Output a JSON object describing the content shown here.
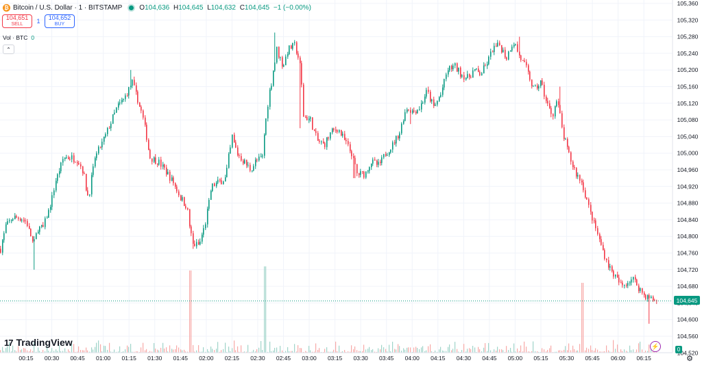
{
  "header": {
    "coin_symbol": "₿",
    "symbol_text": "Bitcoin / U.S. Dollar · 1 · BITSTAMP",
    "open_label": "O",
    "open": "104,636",
    "high_label": "H",
    "high": "104,645",
    "low_label": "L",
    "low": "104,632",
    "close_label": "C",
    "close": "104,645",
    "change": "−1 (−0.00%)"
  },
  "trade": {
    "sell_price": "104,651",
    "sell_label": "SELL",
    "qty": "1",
    "buy_price": "104,652",
    "buy_label": "BUY"
  },
  "volume": {
    "label": "Vol · BTC",
    "value": "0"
  },
  "collapse_symbol": "⌃",
  "logo": {
    "mark": "17",
    "text": "TradingView"
  },
  "last_price_label": "104,645",
  "volume_axis_value": "0",
  "settings_icon": "⚙",
  "bolt_icon": "⚡",
  "colors": {
    "up": "#089981",
    "down": "#f23645",
    "up_volume": "#9fd4c9",
    "down_volume": "#f7a9a7",
    "grid": "#f0f3fa",
    "text": "#131722",
    "brand_coin": "#f7931a"
  },
  "chart_data": {
    "type": "candlestick",
    "symbol": "Bitcoin / U.S. Dollar · 1 · BITSTAMP",
    "y_ticks": [
      "105,360",
      "105,320",
      "105,280",
      "105,240",
      "105,200",
      "105,160",
      "105,120",
      "105,080",
      "105,040",
      "105,000",
      "104,960",
      "104,920",
      "104,880",
      "104,840",
      "104,800",
      "104,760",
      "104,720",
      "104,680",
      "104,640",
      "104,600",
      "104,560",
      "104,520"
    ],
    "x_ticks": [
      "00:15",
      "00:30",
      "00:45",
      "01:00",
      "01:15",
      "01:30",
      "01:45",
      "02:00",
      "02:15",
      "02:30",
      "02:45",
      "03:00",
      "03:15",
      "03:30",
      "03:45",
      "04:00",
      "04:15",
      "04:30",
      "04:45",
      "05:00",
      "05:15",
      "05:30",
      "05:45",
      "06:00",
      "06:15"
    ],
    "ylim": [
      104515,
      105370
    ],
    "last_price": 104645,
    "price_path": [
      [
        0,
        104770
      ],
      [
        8,
        104825
      ],
      [
        18,
        104845
      ],
      [
        28,
        104845
      ],
      [
        38,
        104835
      ],
      [
        48,
        104780
      ],
      [
        55,
        104820
      ],
      [
        62,
        104820
      ],
      [
        72,
        104870
      ],
      [
        80,
        104930
      ],
      [
        92,
        104990
      ],
      [
        102,
        104990
      ],
      [
        112,
        104985
      ],
      [
        120,
        104960
      ],
      [
        128,
        104890
      ],
      [
        138,
        104990
      ],
      [
        150,
        105030
      ],
      [
        160,
        105070
      ],
      [
        170,
        105110
      ],
      [
        180,
        105130
      ],
      [
        192,
        105170
      ],
      [
        200,
        105130
      ],
      [
        210,
        105070
      ],
      [
        218,
        104990
      ],
      [
        230,
        104980
      ],
      [
        240,
        104960
      ],
      [
        252,
        104930
      ],
      [
        262,
        104895
      ],
      [
        272,
        104870
      ],
      [
        280,
        104780
      ],
      [
        290,
        104780
      ],
      [
        300,
        104840
      ],
      [
        308,
        104920
      ],
      [
        318,
        104930
      ],
      [
        328,
        104940
      ],
      [
        338,
        105040
      ],
      [
        345,
        105000
      ],
      [
        355,
        104980
      ],
      [
        365,
        104960
      ],
      [
        372,
        104980
      ],
      [
        382,
        104990
      ],
      [
        388,
        105100
      ],
      [
        396,
        105180
      ],
      [
        403,
        105250
      ],
      [
        412,
        105210
      ],
      [
        420,
        105250
      ],
      [
        430,
        105260
      ],
      [
        437,
        105210
      ],
      [
        442,
        105090
      ],
      [
        452,
        105080
      ],
      [
        462,
        105030
      ],
      [
        472,
        105020
      ],
      [
        482,
        105050
      ],
      [
        492,
        105060
      ],
      [
        502,
        105030
      ],
      [
        512,
        105000
      ],
      [
        520,
        104950
      ],
      [
        532,
        104950
      ],
      [
        540,
        104980
      ],
      [
        552,
        104970
      ],
      [
        562,
        105000
      ],
      [
        572,
        105020
      ],
      [
        582,
        105050
      ],
      [
        592,
        105110
      ],
      [
        602,
        105100
      ],
      [
        612,
        105110
      ],
      [
        622,
        105150
      ],
      [
        632,
        105110
      ],
      [
        642,
        105140
      ],
      [
        652,
        105200
      ],
      [
        662,
        105210
      ],
      [
        672,
        105190
      ],
      [
        682,
        105180
      ],
      [
        690,
        105200
      ],
      [
        700,
        105190
      ],
      [
        708,
        105210
      ],
      [
        718,
        105250
      ],
      [
        728,
        105260
      ],
      [
        738,
        105230
      ],
      [
        748,
        105270
      ],
      [
        758,
        105230
      ],
      [
        768,
        105200
      ],
      [
        778,
        105150
      ],
      [
        788,
        105170
      ],
      [
        797,
        105120
      ],
      [
        805,
        105090
      ],
      [
        812,
        105130
      ],
      [
        820,
        105050
      ],
      [
        830,
        104990
      ],
      [
        840,
        104950
      ],
      [
        848,
        104930
      ],
      [
        858,
        104870
      ],
      [
        866,
        104830
      ],
      [
        874,
        104790
      ],
      [
        882,
        104750
      ],
      [
        890,
        104720
      ],
      [
        898,
        104700
      ],
      [
        906,
        104680
      ],
      [
        914,
        104690
      ],
      [
        922,
        104700
      ],
      [
        930,
        104680
      ],
      [
        938,
        104660
      ],
      [
        948,
        104650
      ],
      [
        957,
        104645
      ]
    ],
    "spikes": [
      {
        "i": 49,
        "low": 104720
      },
      {
        "i": 190,
        "high": 105200
      },
      {
        "i": 280,
        "low": 104770
      },
      {
        "i": 401,
        "high": 105290
      },
      {
        "i": 436,
        "low": 105060
      },
      {
        "i": 516,
        "low": 104940
      },
      {
        "i": 598,
        "low": 105070
      },
      {
        "i": 756,
        "high": 105280
      },
      {
        "i": 816,
        "high": 105160
      },
      {
        "i": 947,
        "low": 104590
      }
    ],
    "volume_spikes": [
      {
        "i": 277,
        "v": 1.0,
        "dir": "down"
      },
      {
        "i": 386,
        "v": 1.05,
        "dir": "up"
      },
      {
        "i": 849,
        "v": 0.85,
        "dir": "down"
      }
    ]
  }
}
